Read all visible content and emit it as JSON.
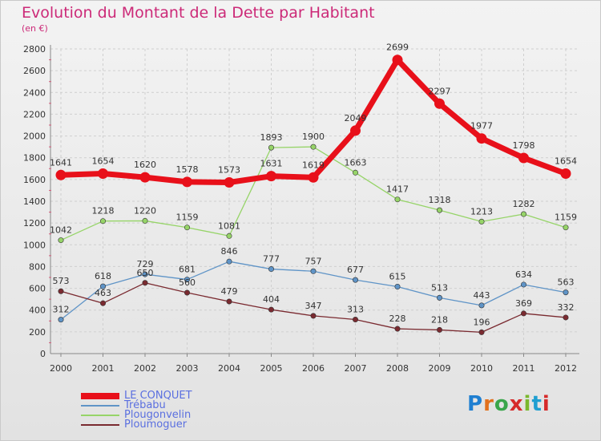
{
  "title": "Evolution du Montant de la Dette par Habitant",
  "subtitle": "(en €)",
  "brand": {
    "text": "Proxiti",
    "letter_colors": [
      "#1f7fd1",
      "#e2711d",
      "#3aa64b",
      "#d62a2a",
      "#7ab82e",
      "#1f9fd1",
      "#d62a2a"
    ]
  },
  "chart_data": {
    "type": "line",
    "x": [
      "2000",
      "2001",
      "2002",
      "2003",
      "2004",
      "2005",
      "2006",
      "2007",
      "2008",
      "2009",
      "2010",
      "2011",
      "2012"
    ],
    "ylim": [
      0,
      2800
    ],
    "yticks": [
      "0",
      "200",
      "400",
      "600",
      "800",
      "1000",
      "1200",
      "1400",
      "1600",
      "1800",
      "2000",
      "2200",
      "2400",
      "2600",
      "2800"
    ],
    "grid": true,
    "legend_position": "bottom-left",
    "series": [
      {
        "name": "LE CONQUET",
        "color": "#e8101a",
        "values": [
          1641,
          1654,
          1620,
          1578,
          1573,
          1631,
          1619,
          2049,
          2699,
          2297,
          1977,
          1798,
          1654
        ]
      },
      {
        "name": "Trébabu",
        "color": "#5f94c7",
        "values": [
          312,
          618,
          729,
          681,
          846,
          777,
          757,
          677,
          615,
          513,
          443,
          634,
          563
        ]
      },
      {
        "name": "Plougonvelin",
        "color": "#96d468",
        "values": [
          1042,
          1218,
          1220,
          1159,
          1081,
          1893,
          1900,
          1663,
          1417,
          1318,
          1213,
          1282,
          1159
        ]
      },
      {
        "name": "Ploumoguer",
        "color": "#7a2a30",
        "values": [
          573,
          463,
          650,
          560,
          479,
          404,
          347,
          313,
          228,
          218,
          196,
          369,
          332
        ]
      }
    ]
  }
}
